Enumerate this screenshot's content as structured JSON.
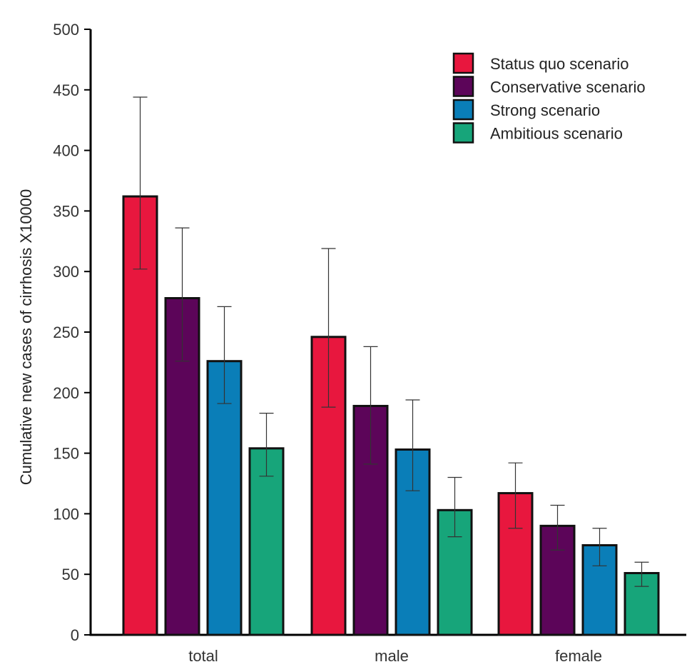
{
  "chart_data": {
    "type": "bar",
    "title": "",
    "xlabel": "",
    "ylabel": "Cumulative new cases of cirrhosis X10000",
    "ylim": [
      0,
      500
    ],
    "yticks": [
      0,
      50,
      100,
      150,
      200,
      250,
      300,
      350,
      400,
      450,
      500
    ],
    "grid": false,
    "legend_position": "top-right",
    "categories": [
      "total",
      "male",
      "female"
    ],
    "series": [
      {
        "name": "Status quo scenario",
        "color": "#e8173e",
        "values": [
          362,
          246,
          117
        ],
        "error_low": [
          302,
          188,
          88
        ],
        "error_high": [
          444,
          319,
          142
        ]
      },
      {
        "name": "Conservative scenario",
        "color": "#5c0559",
        "values": [
          278,
          189,
          90
        ],
        "error_low": [
          226,
          141,
          70
        ],
        "error_high": [
          336,
          238,
          107
        ]
      },
      {
        "name": "Strong scenario",
        "color": "#0a7eb8",
        "values": [
          226,
          153,
          74
        ],
        "error_low": [
          191,
          119,
          57
        ],
        "error_high": [
          271,
          194,
          88
        ]
      },
      {
        "name": "Ambitious scenario",
        "color": "#17a57a",
        "values": [
          154,
          103,
          51
        ],
        "error_low": [
          131,
          81,
          40
        ],
        "error_high": [
          183,
          130,
          60
        ]
      }
    ]
  }
}
